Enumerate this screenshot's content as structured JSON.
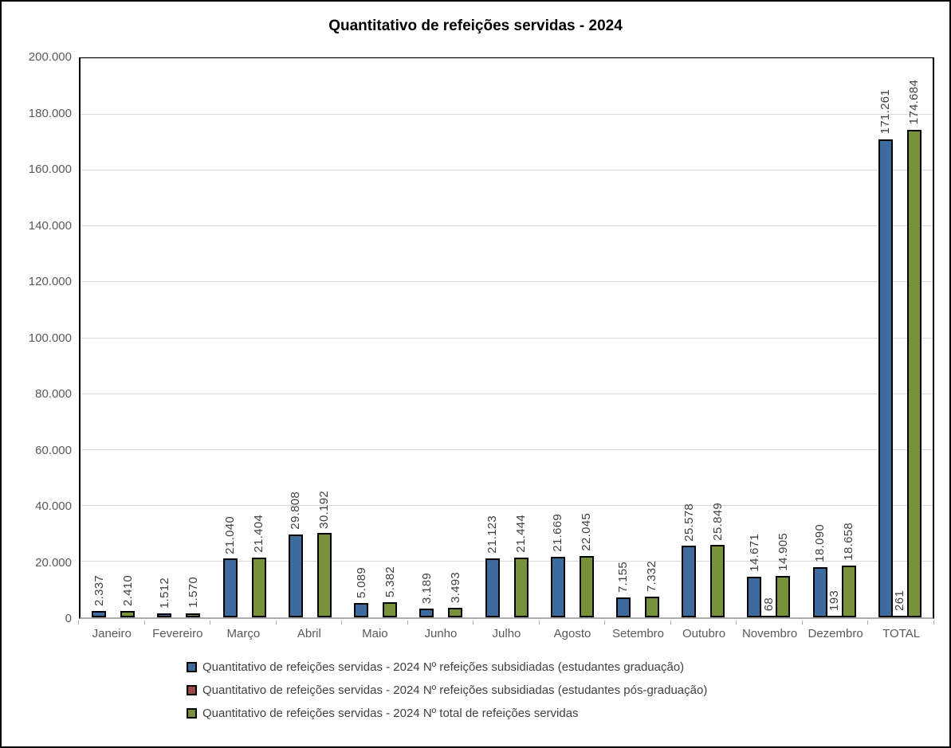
{
  "title": "Quantitativo de refeições servidas - 2024",
  "colors": {
    "series_graduacao": "#3E6B9D",
    "series_pos_graduacao": "#9E4A44",
    "series_total": "#78923C",
    "bar_border": "#000000",
    "gridline": "#D9D9D9",
    "axis_line": "#ABABAB",
    "axis_text": "#595959",
    "data_label_text": "#404040",
    "chart_border": "#000000",
    "background": "#FFFFFF"
  },
  "chart_data": {
    "type": "bar",
    "title": "Quantitativo de refeições servidas - 2024",
    "categories": [
      "Janeiro",
      "Fevereiro",
      "Março",
      "Abril",
      "Maio",
      "Junho",
      "Julho",
      "Agosto",
      "Setembro",
      "Outubro",
      "Novembro",
      "Dezembro",
      "TOTAL"
    ],
    "series": [
      {
        "name": "Quantitativo de refeições servidas - 2024 Nº refeições subsidiadas (estudantes graduação)",
        "color": "#3E6B9D",
        "values": [
          2337,
          1512,
          21040,
          29808,
          5089,
          3189,
          21123,
          21669,
          7155,
          25578,
          14671,
          18090,
          171261
        ],
        "labels": [
          "2.337",
          "1.512",
          "21.040",
          "29.808",
          "5.089",
          "3.189",
          "21.123",
          "21.669",
          "7.155",
          "25.578",
          "14.671",
          "18.090",
          "171.261"
        ]
      },
      {
        "name": "Quantitativo de refeições servidas - 2024 Nº refeições subsidiadas (estudantes pós-graduação)",
        "color": "#9E4A44",
        "values": [
          0,
          0,
          0,
          0,
          0,
          0,
          0,
          0,
          0,
          0,
          68,
          193,
          261
        ],
        "labels": [
          "",
          "",
          "",
          "",
          "",
          "",
          "",
          "",
          "",
          "",
          "68",
          "193",
          "261"
        ]
      },
      {
        "name": "Quantitativo de refeições servidas - 2024 Nº total de refeições servidas",
        "color": "#78923C",
        "values": [
          2410,
          1570,
          21404,
          30192,
          5382,
          3493,
          21444,
          22045,
          7332,
          25849,
          14905,
          18658,
          174684
        ],
        "labels": [
          "2.410",
          "1.570",
          "21.404",
          "30.192",
          "5.382",
          "3.493",
          "21.444",
          "22.045",
          "7.332",
          "25.849",
          "14.905",
          "18.658",
          "174.684"
        ]
      }
    ],
    "ylim": [
      0,
      200000
    ],
    "ytick_step": 20000,
    "ytick_labels": [
      "0",
      "20.000",
      "40.000",
      "60.000",
      "80.000",
      "100.000",
      "120.000",
      "140.000",
      "160.000",
      "180.000",
      "200.000"
    ],
    "grid": true,
    "data_label_rotation": 90,
    "legend_position": "bottom-left"
  }
}
